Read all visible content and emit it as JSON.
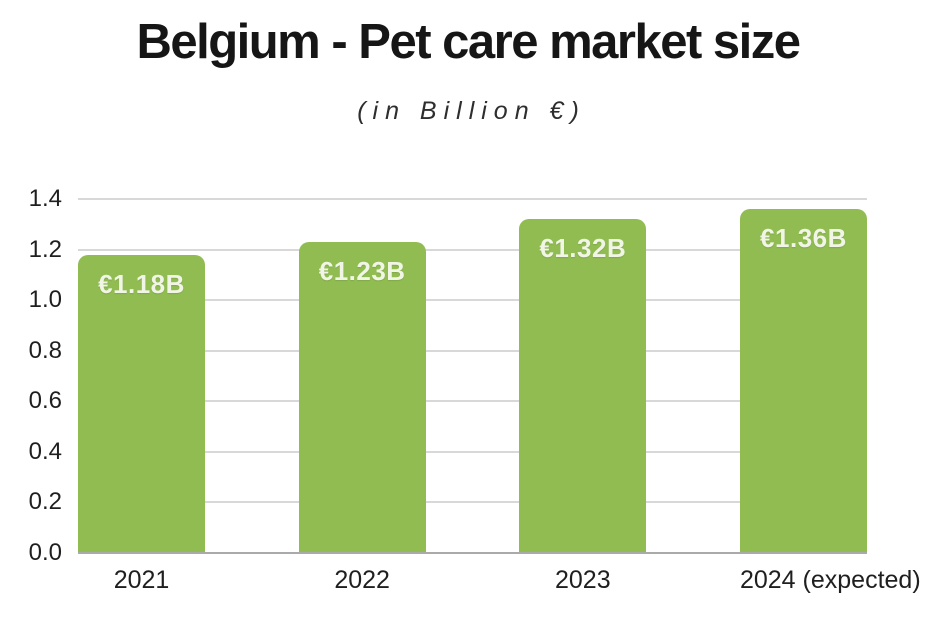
{
  "page": {
    "background": "#ffffff"
  },
  "chart_data": {
    "type": "bar",
    "title": "Belgium - Pet care market size",
    "subtitle": "(in Billion €)",
    "categories": [
      "2021",
      "2022",
      "2023",
      "2024 (expected)"
    ],
    "values": [
      1.18,
      1.23,
      1.32,
      1.36
    ],
    "bar_labels": [
      "€1.18B",
      "€1.23B",
      "€1.32B",
      "€1.36B"
    ],
    "xlabel": "",
    "ylabel": "",
    "ylim": [
      0,
      1.4
    ],
    "yticks": [
      "0.0",
      "0.2",
      "0.4",
      "0.6",
      "0.8",
      "1.0",
      "1.2",
      "1.4"
    ],
    "grid": "horizontal",
    "legend": "none",
    "colors": {
      "bar": "#90bc52",
      "bar_label_text": "#f1f5e6",
      "gridline": "#d8d8d8",
      "axis_line": "#aaaaaa",
      "title_text": "#161616",
      "subtitle_text": "#2e2e2e",
      "tick_text": "#1f1f1f"
    }
  }
}
